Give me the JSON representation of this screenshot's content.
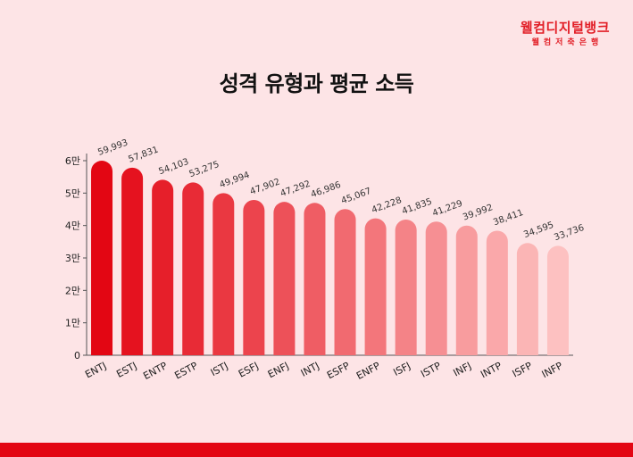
{
  "brand": {
    "name": "웰컴디지털뱅크",
    "sub": "웰컴저축은행",
    "color": "#e21e26"
  },
  "chart_data": {
    "type": "bar",
    "title": "성격 유형과 평균 소득",
    "categories": [
      "ENTJ",
      "ESTJ",
      "ENTP",
      "ESTP",
      "ISTJ",
      "ESFJ",
      "ENFJ",
      "INTJ",
      "ESFP",
      "ENFP",
      "ISFJ",
      "ISTP",
      "INFJ",
      "INTP",
      "ISFP",
      "INFP"
    ],
    "values": [
      59993,
      57831,
      54103,
      53275,
      49994,
      47902,
      47292,
      46986,
      45067,
      42228,
      41835,
      41229,
      39992,
      38411,
      34595,
      33736
    ],
    "value_labels": [
      "59,993",
      "57,831",
      "54,103",
      "53,275",
      "49,994",
      "47,902",
      "47,292",
      "46,986",
      "45,067",
      "42,228",
      "41,835",
      "41,229",
      "39,992",
      "38,411",
      "34,595",
      "33,736"
    ],
    "yticks": [
      0,
      10000,
      20000,
      30000,
      40000,
      50000,
      60000
    ],
    "ytick_labels": [
      "0",
      "1만",
      "2만",
      "3만",
      "4만",
      "5만",
      "6만"
    ],
    "ylim": [
      0,
      60000
    ],
    "xlabel": "",
    "ylabel": "",
    "grid": false,
    "bar_color_start": "#e30613",
    "bar_color_end": "#fdc1c1"
  },
  "footer": {
    "bar_color": "#e30613"
  }
}
